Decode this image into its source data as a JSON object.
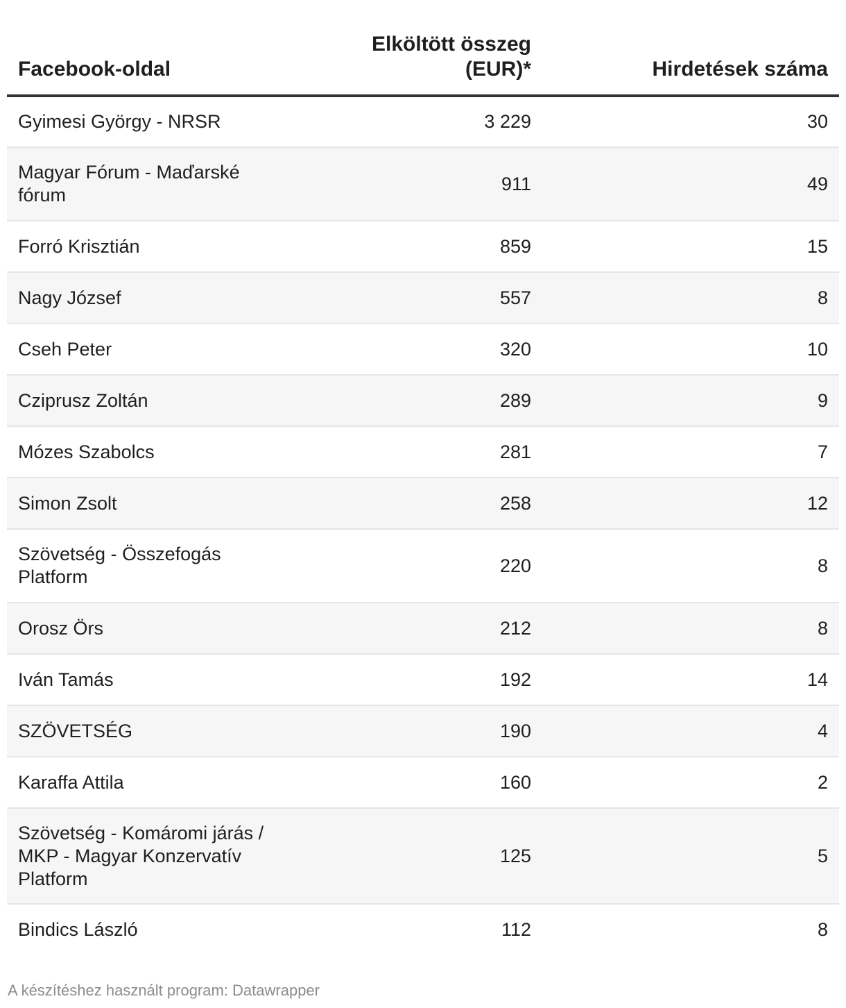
{
  "chart_data": {
    "type": "table",
    "columns": [
      {
        "lines": [
          "Facebook-oldal"
        ]
      },
      {
        "lines": [
          "Elköltött összeg",
          "(EUR)*"
        ]
      },
      {
        "lines": [
          "Hirdetések száma"
        ]
      }
    ],
    "rows": [
      {
        "name": [
          "Gyimesi György - NRSR"
        ],
        "spent": "3 229",
        "ads": "30"
      },
      {
        "name": [
          "Magyar Fórum - Maďarské",
          "fórum"
        ],
        "spent": "911",
        "ads": "49"
      },
      {
        "name": [
          "Forró Krisztián"
        ],
        "spent": "859",
        "ads": "15"
      },
      {
        "name": [
          "Nagy József"
        ],
        "spent": "557",
        "ads": "8"
      },
      {
        "name": [
          "Cseh Peter"
        ],
        "spent": "320",
        "ads": "10"
      },
      {
        "name": [
          "Cziprusz Zoltán"
        ],
        "spent": "289",
        "ads": "9"
      },
      {
        "name": [
          "Mózes Szabolcs"
        ],
        "spent": "281",
        "ads": "7"
      },
      {
        "name": [
          "Simon Zsolt"
        ],
        "spent": "258",
        "ads": "12"
      },
      {
        "name": [
          "Szövetség - Összefogás",
          "Platform"
        ],
        "spent": "220",
        "ads": "8"
      },
      {
        "name": [
          "Orosz Örs"
        ],
        "spent": "212",
        "ads": "8"
      },
      {
        "name": [
          "Iván Tamás"
        ],
        "spent": "192",
        "ads": "14"
      },
      {
        "name": [
          "SZÖVETSÉG"
        ],
        "spent": "190",
        "ads": "4"
      },
      {
        "name": [
          "Karaffa Attila"
        ],
        "spent": "160",
        "ads": "2"
      },
      {
        "name": [
          "Szövetség - Komáromi járás /",
          "MKP - Magyar Konzervatív",
          "Platform"
        ],
        "spent": "125",
        "ads": "5"
      },
      {
        "name": [
          "Bindics László"
        ],
        "spent": "112",
        "ads": "8"
      }
    ]
  },
  "footer": "A készítéshez használt program: Datawrapper",
  "colors": {
    "header_rule": "#333333",
    "row_separator": "#e6e6e6",
    "alt_row_background": "#f6f6f6",
    "footer_text": "#8c8c8c"
  }
}
